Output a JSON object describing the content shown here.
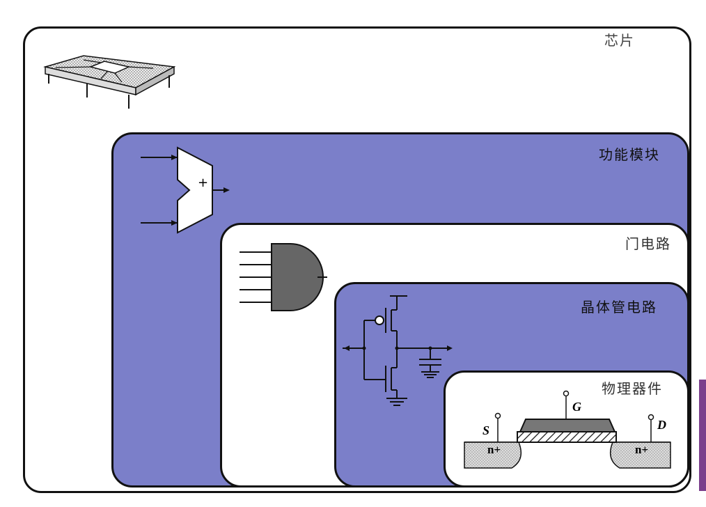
{
  "levels": {
    "chip": {
      "label": "芯片",
      "fill": "#ffffff"
    },
    "module": {
      "label": "功能模块",
      "fill": "#7b7fc9",
      "adder_sign": "+"
    },
    "gate": {
      "label": "门电路",
      "fill": "#ffffff"
    },
    "transistor": {
      "label": "晶体管电路",
      "fill": "#7b7fc9"
    },
    "device": {
      "label": "物理器件",
      "fill": "#ffffff"
    }
  },
  "device_terms": {
    "source": "S",
    "gate": "G",
    "drain": "D",
    "n_left": "n+",
    "n_right": "n+"
  }
}
